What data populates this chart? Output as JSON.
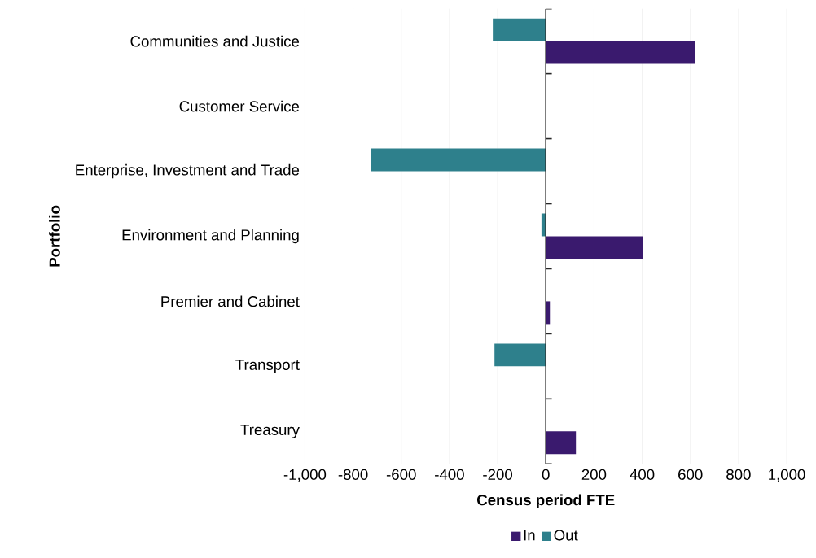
{
  "chart_data": {
    "type": "bar",
    "orientation": "horizontal",
    "xlabel": "Census period FTE",
    "ylabel": "Portfolio",
    "categories": [
      "Communities and Justice",
      "Customer Service",
      "Enterprise, Investment and Trade",
      "Environment and Planning",
      "Premier and Cabinet",
      "Transport",
      "Treasury"
    ],
    "series": [
      {
        "name": "In",
        "color": "#3a1a6e",
        "values": [
          618,
          null,
          null,
          402,
          17,
          null,
          125
        ]
      },
      {
        "name": "Out",
        "color": "#2e808c",
        "values": [
          -220,
          null,
          -725,
          -18,
          null,
          -213,
          null
        ]
      }
    ],
    "xlim": [
      -1000,
      1000
    ],
    "xticks": [
      {
        "value": -1000,
        "label": "-1,000"
      },
      -800,
      -600,
      -400,
      -200,
      0,
      200,
      400,
      600,
      800,
      {
        "value": 1000,
        "label": "1,000"
      }
    ],
    "grid": "x",
    "legend": "bottom"
  }
}
